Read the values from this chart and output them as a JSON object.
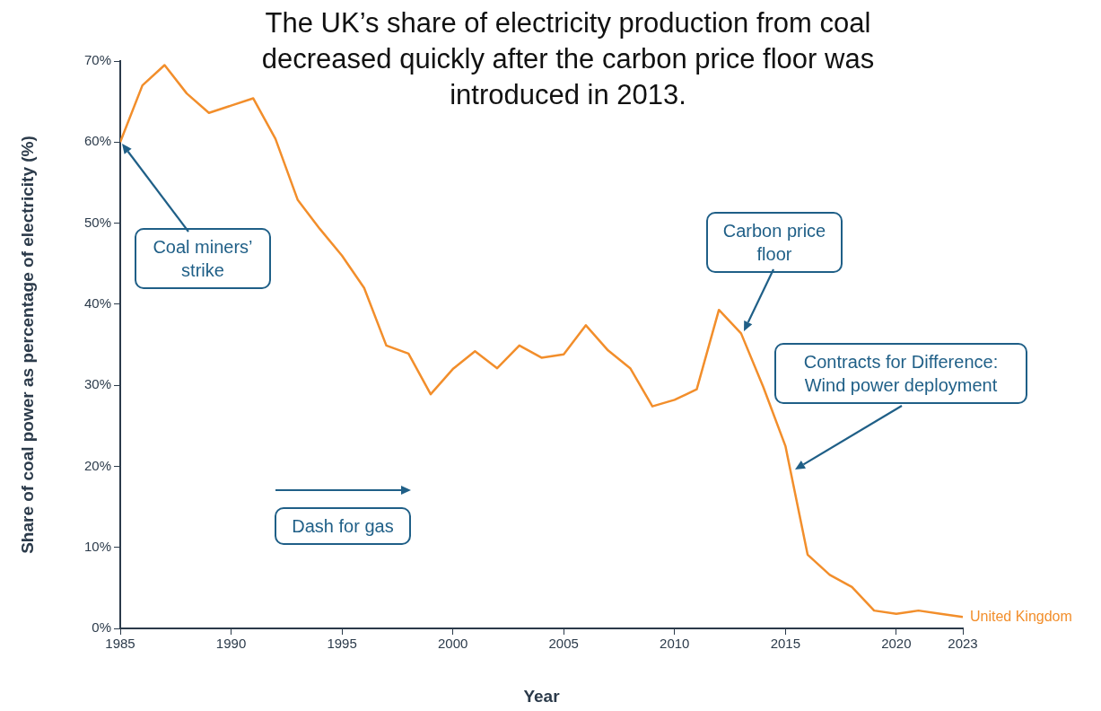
{
  "chart_data": {
    "type": "line",
    "title": "The UK’s share of electricity production from coal decreased quickly after the carbon price floor was introduced in 2013.",
    "xlabel": "Year",
    "ylabel": "Share of coal power as percentage of electricity (%)",
    "x": [
      1985,
      1986,
      1987,
      1988,
      1989,
      1990,
      1991,
      1992,
      1993,
      1994,
      1995,
      1996,
      1997,
      1998,
      1999,
      2000,
      2001,
      2002,
      2003,
      2004,
      2005,
      2006,
      2007,
      2008,
      2009,
      2010,
      2011,
      2012,
      2013,
      2014,
      2015,
      2016,
      2017,
      2018,
      2019,
      2020,
      2021,
      2022,
      2023
    ],
    "series": [
      {
        "name": "United Kingdom",
        "color": "#f28e2b",
        "values": [
          60,
          67,
          69.5,
          66,
          63.6,
          64.5,
          65.4,
          60.4,
          52.9,
          49.3,
          46,
          42,
          34.9,
          33.9,
          28.9,
          32,
          34.2,
          32.1,
          34.9,
          33.4,
          33.8,
          37.4,
          34.3,
          32.1,
          27.4,
          28.2,
          29.5,
          39.3,
          36.4,
          29.8,
          22.5,
          9.1,
          6.6,
          5.1,
          2.2,
          1.8,
          2.2,
          1.8,
          1.4
        ]
      }
    ],
    "xlim": [
      1985,
      2023
    ],
    "xticks": [
      1985,
      1990,
      1995,
      2000,
      2005,
      2010,
      2015,
      2020,
      2023
    ],
    "ylim": [
      0,
      70
    ],
    "yticks": [
      {
        "value": 0,
        "label": "0%"
      },
      {
        "value": 10,
        "label": "10%"
      },
      {
        "value": 20,
        "label": "20%"
      },
      {
        "value": 30,
        "label": "30%"
      },
      {
        "value": 40,
        "label": "40%"
      },
      {
        "value": 50,
        "label": "50%"
      },
      {
        "value": 60,
        "label": "60%"
      },
      {
        "value": 70,
        "label": "70%"
      }
    ],
    "annotations": [
      "Coal miners’ strike",
      "Carbon price floor",
      "Contracts for Difference: Wind power deployment",
      "Dash for gas"
    ],
    "grid": false,
    "legend": false,
    "marker": "none",
    "line_style": "solid"
  }
}
